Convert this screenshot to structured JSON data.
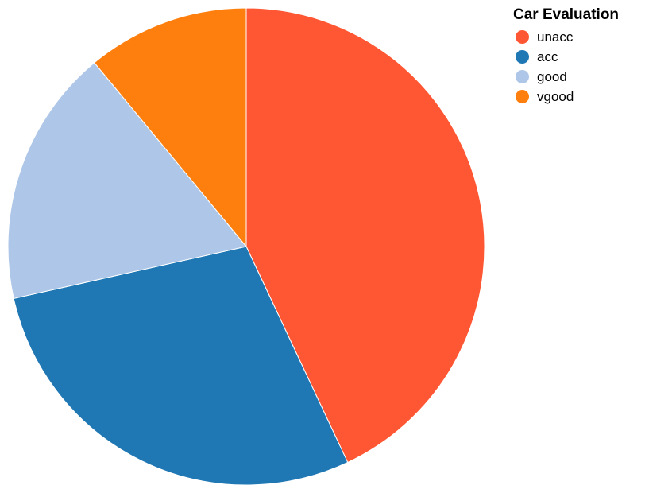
{
  "chart_data": {
    "type": "pie",
    "legend_title": "Car Evaluation",
    "legend_position": "top-right",
    "slices": [
      {
        "label": "unacc",
        "value": 43.0,
        "color": "#ff5733"
      },
      {
        "label": "acc",
        "value": 28.5,
        "color": "#1f77b4"
      },
      {
        "label": "good",
        "value": 17.5,
        "color": "#aec7e8"
      },
      {
        "label": "vgood",
        "value": 11.0,
        "color": "#ff7f0e"
      }
    ]
  }
}
